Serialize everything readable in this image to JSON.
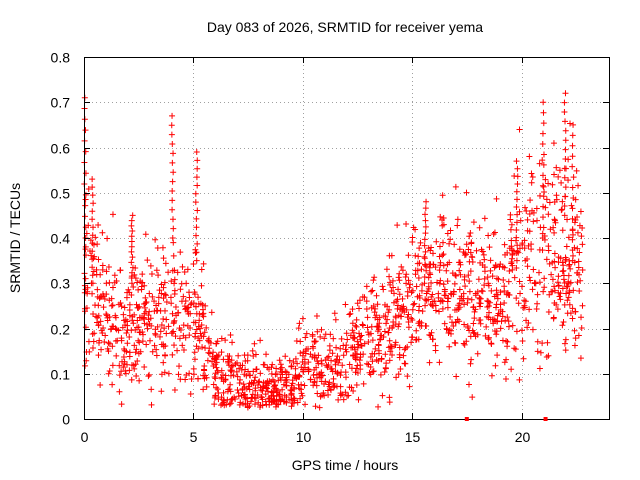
{
  "chart_data": {
    "type": "scatter",
    "title": "Day 083 of 2026, SRMTID for receiver yema",
    "xlabel": "GPS time / hours",
    "ylabel": "SRMTID / TECUs",
    "xlim": [
      0,
      24
    ],
    "ylim": [
      0,
      0.8
    ],
    "xticks": [
      0,
      5,
      10,
      15,
      20
    ],
    "xtick_labels": [
      "0",
      "5",
      "10",
      "15",
      "20"
    ],
    "yticks": [
      0,
      0.1,
      0.2,
      0.3,
      0.4,
      0.5,
      0.6,
      0.7,
      0.8
    ],
    "ytick_labels": [
      "0",
      "0.1",
      "0.2",
      "0.3",
      "0.4",
      "0.5",
      "0.6",
      "0.7",
      "0.8"
    ],
    "grid": true,
    "marker": "+",
    "color": "#ff0000",
    "trend": {
      "x": [
        0,
        0.5,
        1,
        2,
        3,
        4,
        5,
        5.5,
        6,
        7,
        8,
        9,
        9.5,
        10,
        11,
        12,
        13,
        14,
        15,
        16,
        17,
        18,
        19,
        20,
        21,
        22,
        22.8
      ],
      "y": [
        0.32,
        0.26,
        0.24,
        0.2,
        0.22,
        0.22,
        0.22,
        0.18,
        0.11,
        0.08,
        0.07,
        0.06,
        0.07,
        0.12,
        0.11,
        0.13,
        0.17,
        0.21,
        0.25,
        0.28,
        0.3,
        0.28,
        0.27,
        0.34,
        0.38,
        0.36,
        0.3
      ]
    },
    "spikes": [
      {
        "x": 0.05,
        "y_min": 0.4,
        "y_max": 0.71
      },
      {
        "x": 0.4,
        "y_min": 0.3,
        "y_max": 0.53
      },
      {
        "x": 2.2,
        "y_min": 0.3,
        "y_max": 0.45
      },
      {
        "x": 4.05,
        "y_min": 0.4,
        "y_max": 0.67
      },
      {
        "x": 5.15,
        "y_min": 0.35,
        "y_max": 0.59
      },
      {
        "x": 15.6,
        "y_min": 0.3,
        "y_max": 0.48
      },
      {
        "x": 19.8,
        "y_min": 0.35,
        "y_max": 0.57
      },
      {
        "x": 21.0,
        "y_min": 0.4,
        "y_max": 0.7
      },
      {
        "x": 22.0,
        "y_min": 0.45,
        "y_max": 0.72
      },
      {
        "x": 22.35,
        "y_min": 0.35,
        "y_max": 0.65
      }
    ],
    "x_marks": [
      17.5,
      21.1
    ],
    "n_points": 1700,
    "data_range": [
      0,
      22.8
    ]
  }
}
